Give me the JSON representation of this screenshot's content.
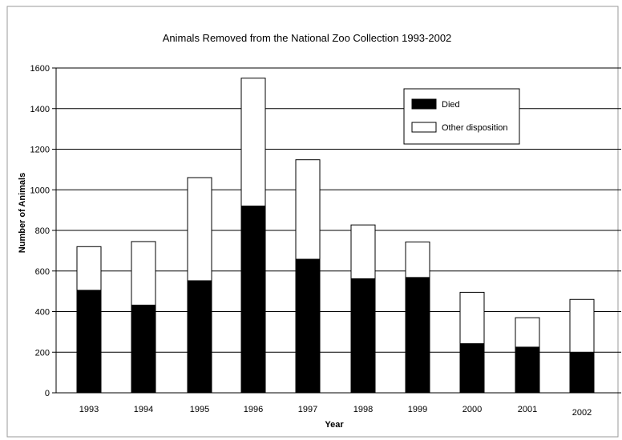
{
  "chart_data": {
    "type": "bar",
    "stacked": true,
    "title": "Animals Removed from the National Zoo Collection 1993-2002",
    "xlabel": "Year",
    "ylabel": "Number of Animals",
    "categories": [
      "1993",
      "1994",
      "1995",
      "1996",
      "1997",
      "1998",
      "1999",
      "2000",
      "2001",
      "2002"
    ],
    "series": [
      {
        "name": "Died",
        "values": [
          505,
          432,
          552,
          920,
          658,
          562,
          568,
          242,
          225,
          200
        ],
        "color": "#000000"
      },
      {
        "name": "Other disposition",
        "values": [
          215,
          313,
          508,
          630,
          490,
          265,
          175,
          253,
          145,
          260
        ],
        "color": "#ffffff"
      }
    ],
    "ylim": [
      0,
      1600
    ],
    "yticks": [
      0,
      200,
      400,
      600,
      800,
      1000,
      1200,
      1400,
      1600
    ],
    "grid": true,
    "legend_position": "top-right"
  }
}
